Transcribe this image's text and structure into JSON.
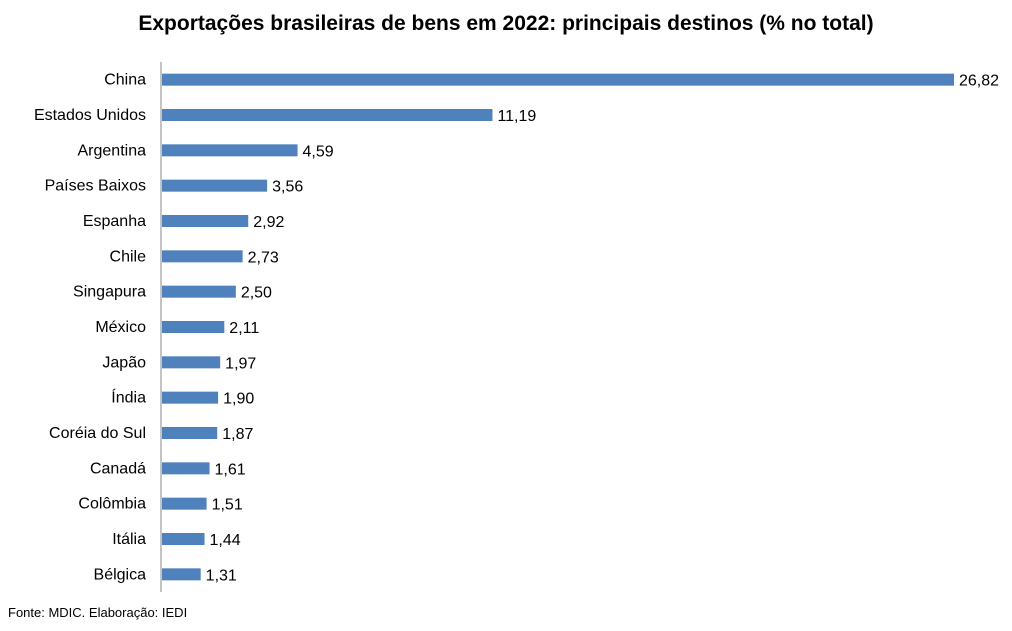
{
  "chart_data": {
    "type": "bar",
    "orientation": "horizontal",
    "title": "Exportações brasileiras de bens em 2022: principais destinos (% no total)",
    "categories": [
      "China",
      "Estados Unidos",
      "Argentina",
      "Países Baixos",
      "Espanha",
      "Chile",
      "Singapura",
      "México",
      "Japão",
      "Índia",
      "Coréia do Sul",
      "Canadá",
      "Colômbia",
      "Itália",
      "Bélgica"
    ],
    "values": [
      26.82,
      11.19,
      4.59,
      3.56,
      2.92,
      2.73,
      2.5,
      2.11,
      1.97,
      1.9,
      1.87,
      1.61,
      1.51,
      1.44,
      1.31
    ],
    "value_labels": [
      "26,82",
      "11,19",
      "4,59",
      "3,56",
      "2,92",
      "2,73",
      "2,50",
      "2,11",
      "1,97",
      "1,90",
      "1,87",
      "1,61",
      "1,51",
      "1,44",
      "1,31"
    ],
    "xlim": [
      0,
      26.82
    ],
    "grid": false,
    "legend": "none",
    "bar_color": "#4f81bd"
  },
  "source": "Fonte: MDIC. Elaboração: IEDI"
}
